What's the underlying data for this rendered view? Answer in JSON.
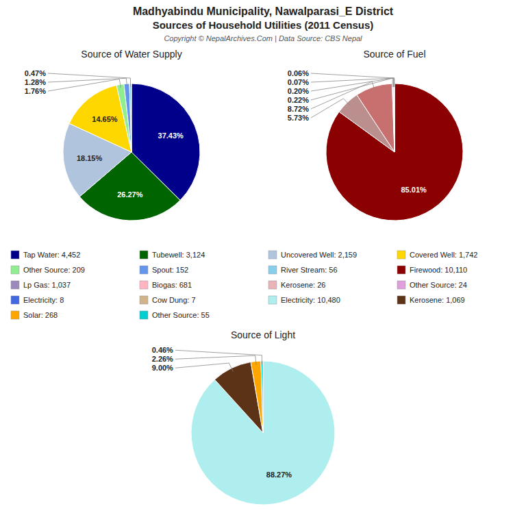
{
  "title": "Madhyabindu Municipality, Nawalparasi_E District",
  "subtitle": "Sources of Household Utilities (2011 Census)",
  "annotations": [
    "Copyright © NepalArchives.Com | Data Source: CBS Nepal"
  ],
  "series": [
    {
      "name": "Tap Water: 4,452",
      "color": "#00008B"
    },
    {
      "name": "Tubewell: 3,124",
      "color": "#006400"
    },
    {
      "name": "Uncovered Well: 2,159",
      "color": "#B0C4DE"
    },
    {
      "name": "Covered Well: 1,742",
      "color": "#FFD700"
    },
    {
      "name": "Other Source: 209",
      "color": "#90EE90"
    },
    {
      "name": "Spout: 152",
      "color": "#6495ED"
    },
    {
      "name": "River Stream: 56",
      "color": "#87CEEB"
    },
    {
      "name": "Firewood: 10,110",
      "color": "#8B0000"
    },
    {
      "name": "Lp Gas: 1,037",
      "color": "#9B8BBB"
    },
    {
      "name": "Biogas: 681",
      "color": "#FFB6C1"
    },
    {
      "name": "Kerosene: 26",
      "color": "#E8B4B8"
    },
    {
      "name": "Other Source: 24",
      "color": "#DDA0DD"
    },
    {
      "name": "Electricity: 8",
      "color": "#4169E1"
    },
    {
      "name": "Cow Dung: 7",
      "color": "#D2B48C"
    },
    {
      "name": "Electricity: 10,480",
      "color": "#AFEEEE"
    },
    {
      "name": "Kerosene: 1,069",
      "color": "#5C3317"
    },
    {
      "name": "Solar: 268",
      "color": "#FFA500"
    },
    {
      "name": "Other Source: 55",
      "color": "#00CED1"
    }
  ],
  "chart_data": [
    {
      "type": "pie",
      "title": "Source of Water Supply",
      "values": [
        37.43,
        26.27,
        18.15,
        14.65,
        1.76,
        1.28,
        0.47
      ],
      "value_labels": [
        "37.43%",
        "26.27%",
        "18.15%",
        "14.65%",
        "1.76%",
        "1.28%",
        "0.47%"
      ],
      "colors": [
        "#00008B",
        "#006400",
        "#B0C4DE",
        "#FFD700",
        "#90EE90",
        "#6495ED",
        "#87CEEB"
      ],
      "data_labels": true
    },
    {
      "type": "pie",
      "title": "Source of Fuel",
      "values": [
        85.01,
        5.73,
        8.72,
        0.22,
        0.2,
        0.07,
        0.06
      ],
      "value_labels": [
        "85.01%",
        "5.73%",
        "8.72%",
        "0.22%",
        "0.20%",
        "0.07%",
        "0.06%"
      ],
      "colors": [
        "#8B0000",
        "#BC8F8F",
        "#C87070",
        "#DDA0DD",
        "#9B8BBB",
        "#FFB6C1",
        "#D3D3D3"
      ],
      "data_labels": true
    },
    {
      "type": "pie",
      "title": "Source of Light",
      "values": [
        88.27,
        9.0,
        2.26,
        0.46
      ],
      "value_labels": [
        "88.27%",
        "9.00%",
        "2.26%",
        "0.46%"
      ],
      "colors": [
        "#AFEEEE",
        "#5C3317",
        "#FFA500",
        "#00CED1"
      ],
      "data_labels": true
    }
  ]
}
